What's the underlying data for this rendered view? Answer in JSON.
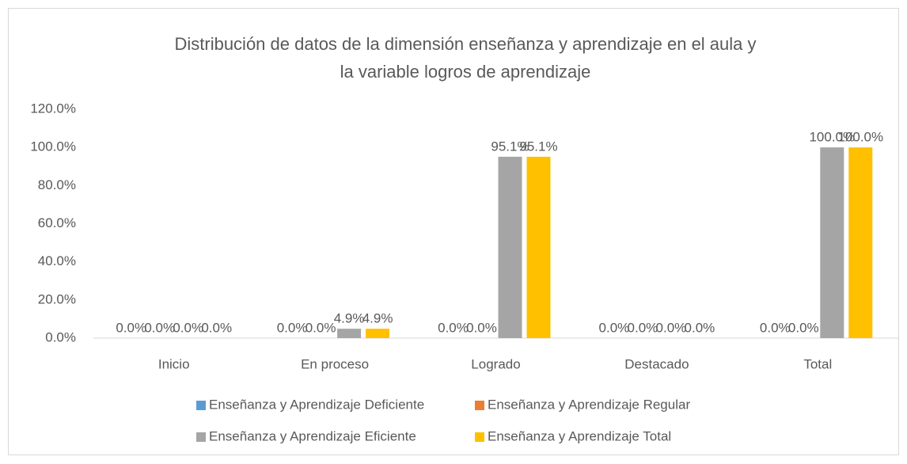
{
  "chart_data": {
    "type": "bar",
    "title": [
      "Distribución de datos de la dimensión enseñanza y aprendizaje en el aula y",
      "la variable logros de aprendizaje"
    ],
    "categories": [
      "Inicio",
      "En proceso",
      "Logrado",
      "Destacado",
      "Total"
    ],
    "series": [
      {
        "name": "Enseñanza y Aprendizaje Deficiente",
        "color": "#5b9bd5",
        "values": [
          0,
          0,
          0,
          0,
          0
        ],
        "value_labels": [
          "0.0%",
          "0.0%",
          "0.0%",
          "0.0%",
          "0.0%"
        ]
      },
      {
        "name": "Enseñanza y Aprendizaje Regular",
        "color": "#ed7d31",
        "values": [
          0,
          0,
          0,
          0,
          0
        ],
        "value_labels": [
          "0.0%",
          "0.0%",
          "0.0%",
          "0.0%",
          "0.0%"
        ]
      },
      {
        "name": "Enseñanza y Aprendizaje Eficiente",
        "color": "#a5a5a5",
        "values": [
          0,
          4.9,
          95.1,
          0,
          100
        ],
        "value_labels": [
          "0.0%",
          "4.9%",
          "95.1%",
          "0.0%",
          "100.0%"
        ]
      },
      {
        "name": "Enseñanza y Aprendizaje Total",
        "color": "#ffc000",
        "values": [
          0,
          4.9,
          95.1,
          0,
          100
        ],
        "value_labels": [
          "0.0%",
          "4.9%",
          "95.1%",
          "0.0%",
          "100.0%"
        ]
      }
    ],
    "ylim": [
      0,
      120
    ],
    "yticks": [
      {
        "value": 0,
        "label": "0.0%"
      },
      {
        "value": 20,
        "label": "20.0%"
      },
      {
        "value": 40,
        "label": "40.0%"
      },
      {
        "value": 60,
        "label": "60.0%"
      },
      {
        "value": 80,
        "label": "80.0%"
      },
      {
        "value": 100,
        "label": "100.0%"
      },
      {
        "value": 120,
        "label": "120.0%"
      }
    ],
    "grid": false,
    "legend": "bottom"
  }
}
